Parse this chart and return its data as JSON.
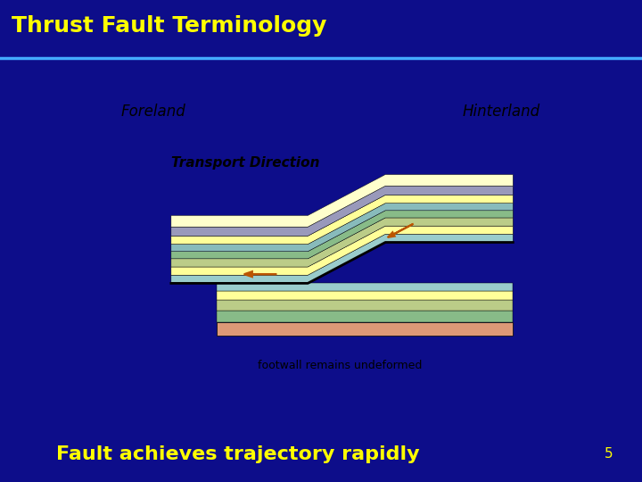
{
  "title": "Thrust Fault Terminology",
  "title_color": "#FFFF00",
  "title_bg": "#1a1aaa",
  "slide_bg": "#0d0d8a",
  "panel_bg": "#FFFFFF",
  "bottom_text": "Fault achieves trajectory rapidly",
  "bottom_text_color": "#FFFF00",
  "page_num": "5",
  "foreland_label": "Foreland",
  "hinterland_label": "Hinterland",
  "transport_label": "Transport Direction",
  "footwall_label": "footwall remains undeformed",
  "colors": {
    "yellow_layer": "#FFFF99",
    "light_yellow": "#FFFFCC",
    "purple_layer": "#9999BB",
    "cyan_layer": "#99CCCC",
    "teal_layer": "#88BBBB",
    "green_layer1": "#AACCAA",
    "green_layer2": "#88BB88",
    "green_layer3": "#BBCC88",
    "salmon_layer": "#DD9977",
    "fault_line": "#000000",
    "arrow": "#BB5500"
  }
}
